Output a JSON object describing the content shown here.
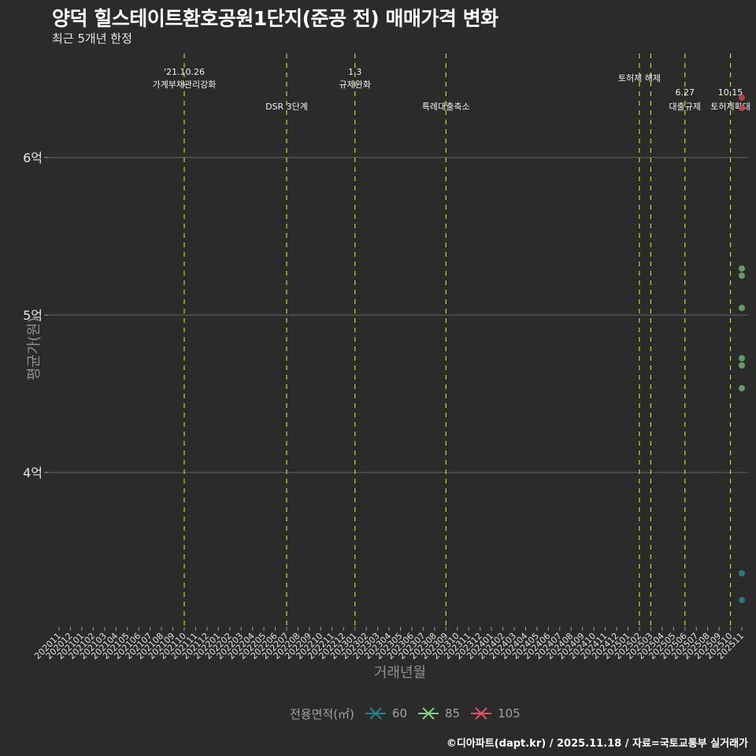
{
  "header": {
    "title": "양덕 힐스테이트환호공원1단지(준공 전) 매매가격 변화",
    "subtitle": "최근 5개년 한정"
  },
  "caption": "©디아파트(dapt.kr) / 2025.11.18 / 자료=국토교통부 실거래가",
  "colors": {
    "background": "#2b2b2b",
    "grid": "#5a5a5a",
    "event_line": "#c8d62a",
    "area_60": "#2a7f86",
    "area_85": "#6aa86a",
    "area_105": "#c0444f"
  },
  "chart_data": {
    "type": "scatter",
    "title": "양덕 힐스테이트환호공원1단지(준공 전) 매매가격 변화",
    "subtitle": "최근 5개년 한정",
    "xlabel": "거래년월",
    "ylabel": "평균가(원)",
    "x_ticks": [
      "202011",
      "202012",
      "202101",
      "202102",
      "202103",
      "202104",
      "202105",
      "202106",
      "202107",
      "202108",
      "202109",
      "202110",
      "202111",
      "202112",
      "202201",
      "202202",
      "202203",
      "202204",
      "202205",
      "202206",
      "202207",
      "202208",
      "202209",
      "202210",
      "202211",
      "202212",
      "202301",
      "202302",
      "202303",
      "202304",
      "202305",
      "202306",
      "202307",
      "202308",
      "202309",
      "202310",
      "202311",
      "202312",
      "202401",
      "202402",
      "202403",
      "202404",
      "202405",
      "202406",
      "202407",
      "202408",
      "202409",
      "202410",
      "202411",
      "202412",
      "202501",
      "202502",
      "202503",
      "202504",
      "202505",
      "202506",
      "202507",
      "202508",
      "202509",
      "202510",
      "202511"
    ],
    "y_ticks": [
      {
        "value": 400000000,
        "label": "4억"
      },
      {
        "value": 500000000,
        "label": "5억"
      },
      {
        "value": 600000000,
        "label": "6억"
      }
    ],
    "ylim": [
      310000000,
      670000000
    ],
    "grid": true,
    "legend_title": "전용면적(㎡)",
    "legend_position": "bottom",
    "series": [
      {
        "name": "60",
        "color": "#2a7f86",
        "points": [
          {
            "x": "202511",
            "y": 336000000
          },
          {
            "x": "202511",
            "y": 319000000
          }
        ]
      },
      {
        "name": "85",
        "color": "#6aa86a",
        "points": [
          {
            "x": "202511",
            "y": 529500000
          },
          {
            "x": "202511",
            "y": 525000000
          },
          {
            "x": "202511",
            "y": 504500000
          },
          {
            "x": "202511",
            "y": 472500000
          },
          {
            "x": "202511",
            "y": 468000000
          },
          {
            "x": "202511",
            "y": 453500000
          }
        ]
      },
      {
        "name": "105",
        "color": "#c0444f",
        "points": [
          {
            "x": "202511",
            "y": 638000000
          },
          {
            "x": "202511",
            "y": 631500000
          }
        ]
      }
    ],
    "events": [
      {
        "x": "202110",
        "line1": "'21.10.26",
        "line2": "가계부채관리강화",
        "row": 1
      },
      {
        "x": "202207",
        "line1": "",
        "line2": "DSR 3단계",
        "row": 2
      },
      {
        "x": "202301",
        "line1": "1.3",
        "line2": "규제완화",
        "row": 1
      },
      {
        "x": "202309",
        "line1": "",
        "line2": "특례대출축소",
        "row": 2
      },
      {
        "x": "202502",
        "line1": "",
        "line2": "토허제 해제",
        "row": 0
      },
      {
        "x": "202503",
        "line1": "",
        "line2": "",
        "row": 0
      },
      {
        "x": "202506",
        "line1": "6.27",
        "line2": "대출규제",
        "row": 2
      },
      {
        "x": "202510",
        "line1": "10.15",
        "line2": "토허제확대",
        "row": 2
      }
    ]
  },
  "legend": {
    "title": "전용면적(㎡)",
    "items": [
      {
        "label": "60",
        "color": "#2a7f86"
      },
      {
        "label": "85",
        "color": "#7ed17e"
      },
      {
        "label": "105",
        "color": "#e0525c"
      }
    ]
  }
}
